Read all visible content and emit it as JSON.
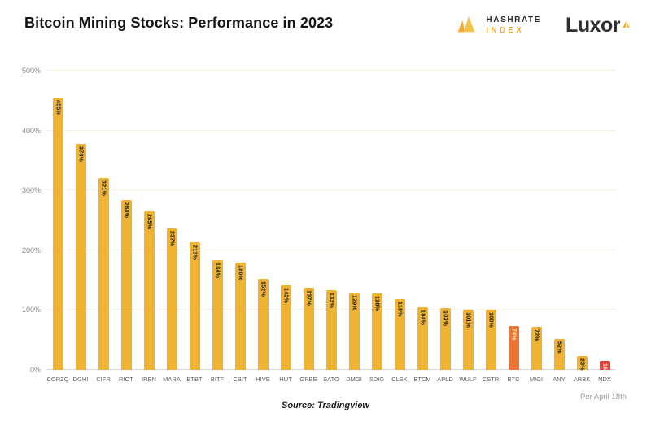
{
  "header": {
    "title": "Bitcoin Mining Stocks: Performance in 2023",
    "hashrate_logo": {
      "line1": "HASHRATE",
      "line2": "INDEX"
    },
    "luxor_logo": {
      "text": "Luxor"
    }
  },
  "footer": {
    "source": "Source: Tradingview",
    "note": "Per April 18th"
  },
  "colors": {
    "bar_default": "#EFB233",
    "bar_btc": "#ED7433",
    "bar_ndx": "#E2413A",
    "brand_yellow": "#F0B13A",
    "title_text": "#141414"
  },
  "chart_data": {
    "type": "bar",
    "title": "Bitcoin Mining Stocks: Performance in 2023",
    "xlabel": "",
    "ylabel": "",
    "ylim": [
      0,
      500
    ],
    "yticks": [
      0,
      100,
      200,
      300,
      400,
      500
    ],
    "ytick_suffix": "%",
    "grid": "horizontal dotted lines, legend none",
    "categories": [
      "CORZQ",
      "DGHI",
      "CIFR",
      "RIOT",
      "IREN",
      "MARA",
      "BTBT",
      "BITF",
      "CBIT",
      "HIVE",
      "HUT",
      "GREE",
      "SATO",
      "DMGI",
      "SDIG",
      "CLSK",
      "BTCM",
      "APLD",
      "WULF",
      "CSTR",
      "BTC",
      "MIGI",
      "ANY",
      "ARBK",
      "NDX"
    ],
    "values": [
      455,
      378,
      321,
      284,
      265,
      237,
      213,
      184,
      180,
      152,
      142,
      137,
      133,
      129,
      128,
      118,
      104,
      103,
      101,
      100,
      74,
      72,
      52,
      23,
      15
    ],
    "value_labels": [
      "455%",
      "378%",
      "321%",
      "284%",
      "265%",
      "237%",
      "213%",
      "184%",
      "180%",
      "152%",
      "142%",
      "137%",
      "133%",
      "129%",
      "128%",
      "118%",
      "104%",
      "103%",
      "101%",
      "100%",
      "74%",
      "72%",
      "52%",
      "23%",
      "15%"
    ],
    "bar_colors": [
      "#EFB233",
      "#EFB233",
      "#EFB233",
      "#EFB233",
      "#EFB233",
      "#EFB233",
      "#EFB233",
      "#EFB233",
      "#EFB233",
      "#EFB233",
      "#EFB233",
      "#EFB233",
      "#EFB233",
      "#EFB233",
      "#EFB233",
      "#EFB233",
      "#EFB233",
      "#EFB233",
      "#EFB233",
      "#EFB233",
      "#ED7433",
      "#EFB233",
      "#EFB233",
      "#EFB233",
      "#E2413A"
    ],
    "value_label_colors": [
      "#161616",
      "#161616",
      "#161616",
      "#161616",
      "#161616",
      "#161616",
      "#161616",
      "#161616",
      "#161616",
      "#161616",
      "#161616",
      "#161616",
      "#161616",
      "#161616",
      "#161616",
      "#161616",
      "#161616",
      "#161616",
      "#161616",
      "#161616",
      "#FFE9B4",
      "#161616",
      "#161616",
      "#161616",
      "#FFE3DC"
    ]
  }
}
